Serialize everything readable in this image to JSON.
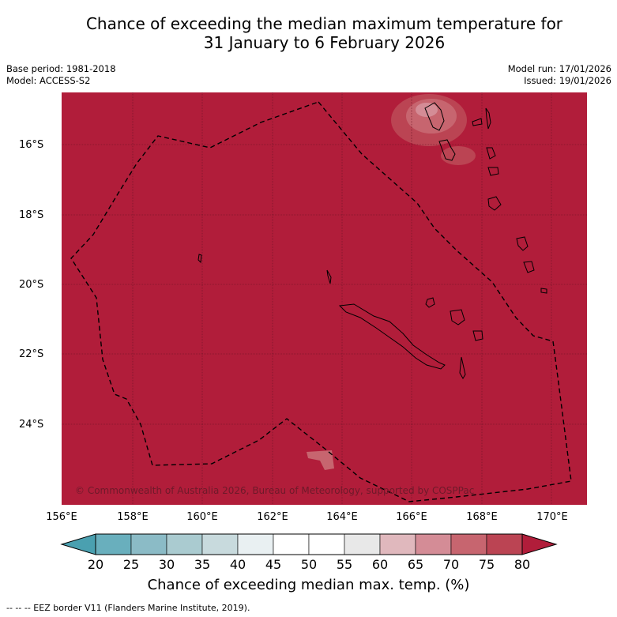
{
  "title_line1": "Chance of exceeding the median maximum temperature for",
  "title_line2": "31 January to 6 February 2026",
  "meta": {
    "base_period": "Base period: 1981-2018",
    "model": "Model: ACCESS-S2",
    "model_run": "Model run: 17/01/2026",
    "issued": "Issued: 19/01/2026"
  },
  "map": {
    "lat_labels": [
      "16°S",
      "18°S",
      "20°S",
      "22°S",
      "24°S"
    ],
    "lon_labels": [
      "156°E",
      "158°E",
      "160°E",
      "162°E",
      "164°E",
      "166°E",
      "168°E",
      "170°E"
    ],
    "copyright": "© Commonwealth of Australia 2026, Bureau of Meteorology, supported by COSPPac",
    "fill_color": "#b11d3a"
  },
  "colorbar": {
    "ticks": [
      "20",
      "25",
      "30",
      "35",
      "40",
      "45",
      "50",
      "55",
      "60",
      "65",
      "70",
      "75",
      "80"
    ],
    "colors": [
      "#69afbd",
      "#8bbbc6",
      "#aacbd0",
      "#c8dadd",
      "#e9f0f2",
      "#ffffff",
      "#ffffff",
      "#e8e8e8",
      "#e0b8bd",
      "#d48c96",
      "#c7656f",
      "#bb4453"
    ],
    "low_color": "#4aa0b0",
    "high_color": "#b11d3a",
    "title": "Chance of exceeding median max. temp. (%)"
  },
  "legend": {
    "eez": "--  --  -- EEZ border V11 (Flanders Marine Institute, 2019)."
  }
}
